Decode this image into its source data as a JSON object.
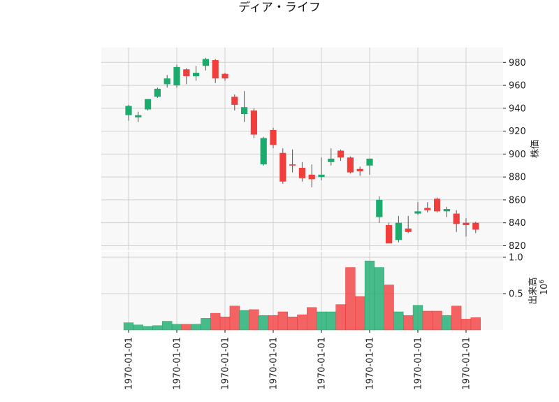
{
  "chart_data": {
    "type": "candlestick",
    "title": "ディア・ライフ",
    "price_ylabel": "株価",
    "volume_ylabel": "出来高",
    "volume_multiplier_base": "10",
    "volume_multiplier_exp": "6",
    "price_ylim": [
      816,
      993
    ],
    "price_ticks": [
      "820",
      "840",
      "860",
      "880",
      "900",
      "920",
      "940",
      "960",
      "980"
    ],
    "volume_ylim": [
      0,
      1.0
    ],
    "volume_ticks": [
      "0.5",
      "1.0"
    ],
    "x_tick_labels": [
      "1970-01-01",
      "1970-01-01",
      "1970-01-01",
      "1970-01-01",
      "1970-01-01",
      "1970-01-01",
      "1970-01-01",
      "1970-01-01"
    ],
    "x_tick_indices": [
      0,
      5,
      10,
      15,
      20,
      25,
      30,
      35
    ],
    "grid": true,
    "up_color": "#1aab6d",
    "down_color": "#f23d3d",
    "candles": [
      {
        "o": 934,
        "h": 943,
        "l": 929,
        "c": 942,
        "v": 0.1
      },
      {
        "o": 932,
        "h": 937,
        "l": 928,
        "c": 934,
        "v": 0.07
      },
      {
        "o": 939,
        "h": 948,
        "l": 938,
        "c": 948,
        "v": 0.05
      },
      {
        "o": 950,
        "h": 958,
        "l": 949,
        "c": 957,
        "v": 0.06
      },
      {
        "o": 961,
        "h": 969,
        "l": 958,
        "c": 966,
        "v": 0.12
      },
      {
        "o": 960,
        "h": 978,
        "l": 958,
        "c": 976,
        "v": 0.08
      },
      {
        "o": 974,
        "h": 975,
        "l": 961,
        "c": 968,
        "v": 0.08
      },
      {
        "o": 968,
        "h": 977,
        "l": 964,
        "c": 971,
        "v": 0.08
      },
      {
        "o": 977,
        "h": 984,
        "l": 973,
        "c": 983,
        "v": 0.16
      },
      {
        "o": 982,
        "h": 983,
        "l": 962,
        "c": 966,
        "v": 0.23
      },
      {
        "o": 970,
        "h": 971,
        "l": 964,
        "c": 966,
        "v": 0.18
      },
      {
        "o": 950,
        "h": 952,
        "l": 938,
        "c": 943,
        "v": 0.33
      },
      {
        "o": 935,
        "h": 955,
        "l": 928,
        "c": 941,
        "v": 0.27
      },
      {
        "o": 938,
        "h": 940,
        "l": 914,
        "c": 917,
        "v": 0.28
      },
      {
        "o": 891,
        "h": 915,
        "l": 890,
        "c": 914,
        "v": 0.2
      },
      {
        "o": 921,
        "h": 923,
        "l": 905,
        "c": 908,
        "v": 0.2
      },
      {
        "o": 901,
        "h": 905,
        "l": 874,
        "c": 876,
        "v": 0.25
      },
      {
        "o": 891,
        "h": 904,
        "l": 884,
        "c": 890,
        "v": 0.18
      },
      {
        "o": 888,
        "h": 893,
        "l": 876,
        "c": 879,
        "v": 0.21
      },
      {
        "o": 882,
        "h": 891,
        "l": 871,
        "c": 878,
        "v": 0.31
      },
      {
        "o": 880,
        "h": 897,
        "l": 877,
        "c": 882,
        "v": 0.25
      },
      {
        "o": 893,
        "h": 905,
        "l": 890,
        "c": 896,
        "v": 0.25
      },
      {
        "o": 903,
        "h": 904,
        "l": 894,
        "c": 897,
        "v": 0.35
      },
      {
        "o": 897,
        "h": 898,
        "l": 883,
        "c": 884,
        "v": 0.86
      },
      {
        "o": 887,
        "h": 889,
        "l": 881,
        "c": 885,
        "v": 0.46
      },
      {
        "o": 890,
        "h": 896,
        "l": 882,
        "c": 896,
        "v": 0.95
      },
      {
        "o": 845,
        "h": 863,
        "l": 840,
        "c": 860,
        "v": 0.86
      },
      {
        "o": 838,
        "h": 840,
        "l": 822,
        "c": 822,
        "v": 0.62
      },
      {
        "o": 825,
        "h": 846,
        "l": 823,
        "c": 840,
        "v": 0.25
      },
      {
        "o": 835,
        "h": 846,
        "l": 831,
        "c": 832,
        "v": 0.2
      },
      {
        "o": 848,
        "h": 858,
        "l": 847,
        "c": 850,
        "v": 0.34
      },
      {
        "o": 853,
        "h": 858,
        "l": 849,
        "c": 851,
        "v": 0.26
      },
      {
        "o": 861,
        "h": 862,
        "l": 849,
        "c": 850,
        "v": 0.26
      },
      {
        "o": 850,
        "h": 854,
        "l": 845,
        "c": 852,
        "v": 0.2
      },
      {
        "o": 848,
        "h": 851,
        "l": 832,
        "c": 839,
        "v": 0.33
      },
      {
        "o": 840,
        "h": 844,
        "l": 828,
        "c": 838,
        "v": 0.15
      },
      {
        "o": 840,
        "h": 841,
        "l": 831,
        "c": 834,
        "v": 0.17
      }
    ]
  }
}
